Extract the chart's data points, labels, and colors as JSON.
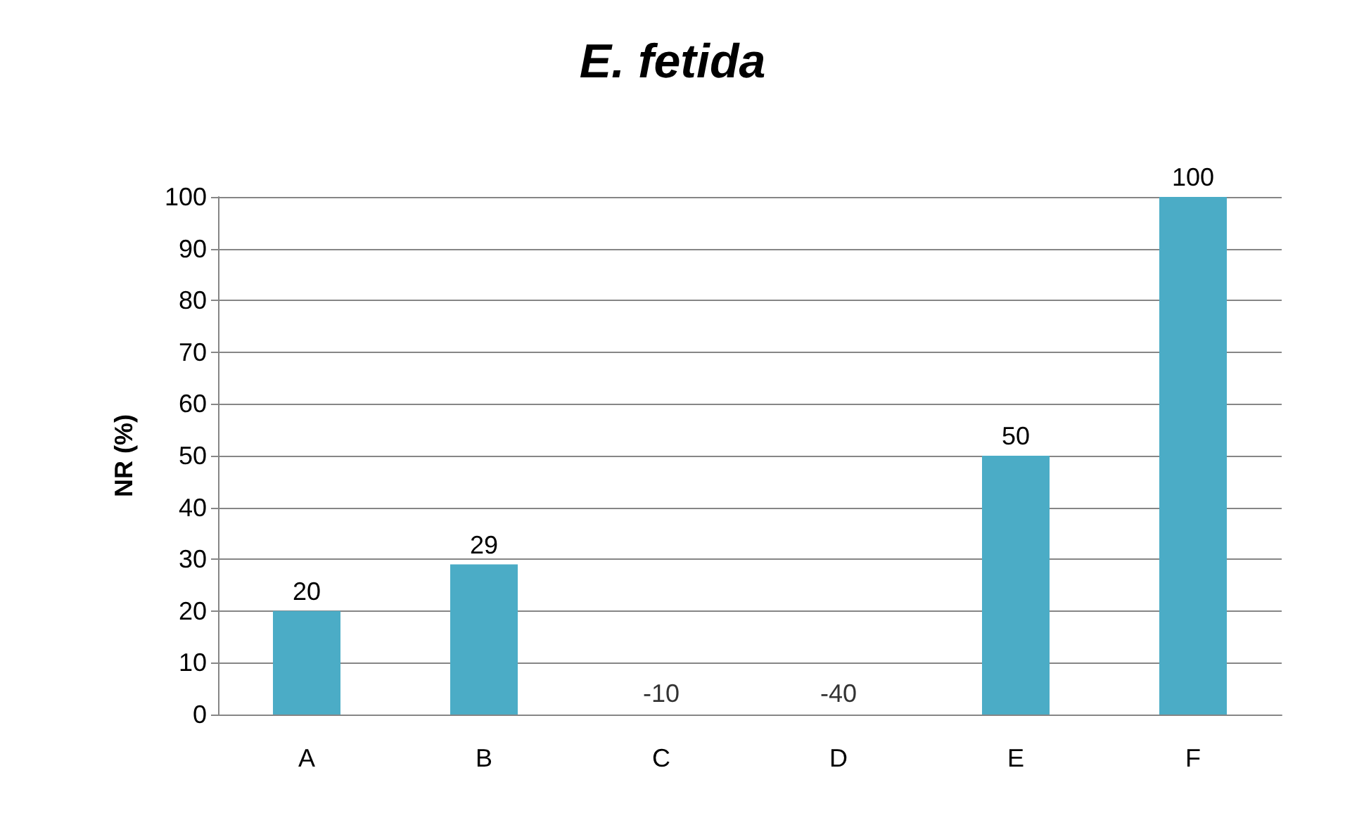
{
  "chart_data": {
    "type": "bar",
    "title": "E. fetida",
    "ylabel": "NR (%)",
    "categories": [
      "A",
      "B",
      "C",
      "D",
      "E",
      "F"
    ],
    "values": [
      20,
      29,
      null,
      null,
      50,
      100
    ],
    "value_labels": [
      "20",
      "29",
      "-10",
      "-40",
      "50",
      "100"
    ],
    "color": "#4bacc6",
    "ylim": [
      0,
      100
    ],
    "yticks": [
      0,
      10,
      20,
      30,
      40,
      50,
      60,
      70,
      80,
      90,
      100
    ],
    "grid": "y"
  }
}
